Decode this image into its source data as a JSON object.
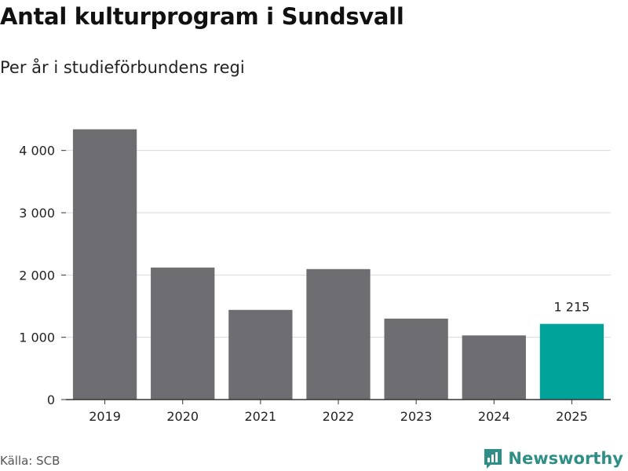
{
  "header": {
    "title": "Antal kulturprogram i Sundsvall",
    "subtitle": "Per år i studieförbundens regi"
  },
  "chart_data": {
    "type": "bar",
    "title": "Antal kulturprogram i Sundsvall",
    "subtitle": "Per år i studieförbundens regi",
    "xlabel": "",
    "ylabel": "",
    "categories": [
      "2019",
      "2020",
      "2021",
      "2022",
      "2023",
      "2024",
      "2025"
    ],
    "values": [
      4340,
      2120,
      1440,
      2095,
      1300,
      1030,
      1215
    ],
    "ylim": [
      0,
      4500
    ],
    "yticks": [
      0,
      1000,
      2000,
      3000,
      4000
    ],
    "ytick_labels": [
      "0",
      "1 000",
      "2 000",
      "3 000",
      "4 000"
    ],
    "grid": true,
    "highlight_index": 6,
    "data_labels": [
      {
        "index": 6,
        "text": "1 215"
      }
    ],
    "colors": {
      "bar": "#6e6d72",
      "highlight": "#00a39a",
      "grid": "#d9d9d9",
      "axis": "#333333"
    }
  },
  "footer": {
    "source": "Källa: SCB",
    "brand_name": "Newsworthy",
    "brand_icon": "newsworthy-logo-icon",
    "brand_color": "#2f8f86"
  }
}
